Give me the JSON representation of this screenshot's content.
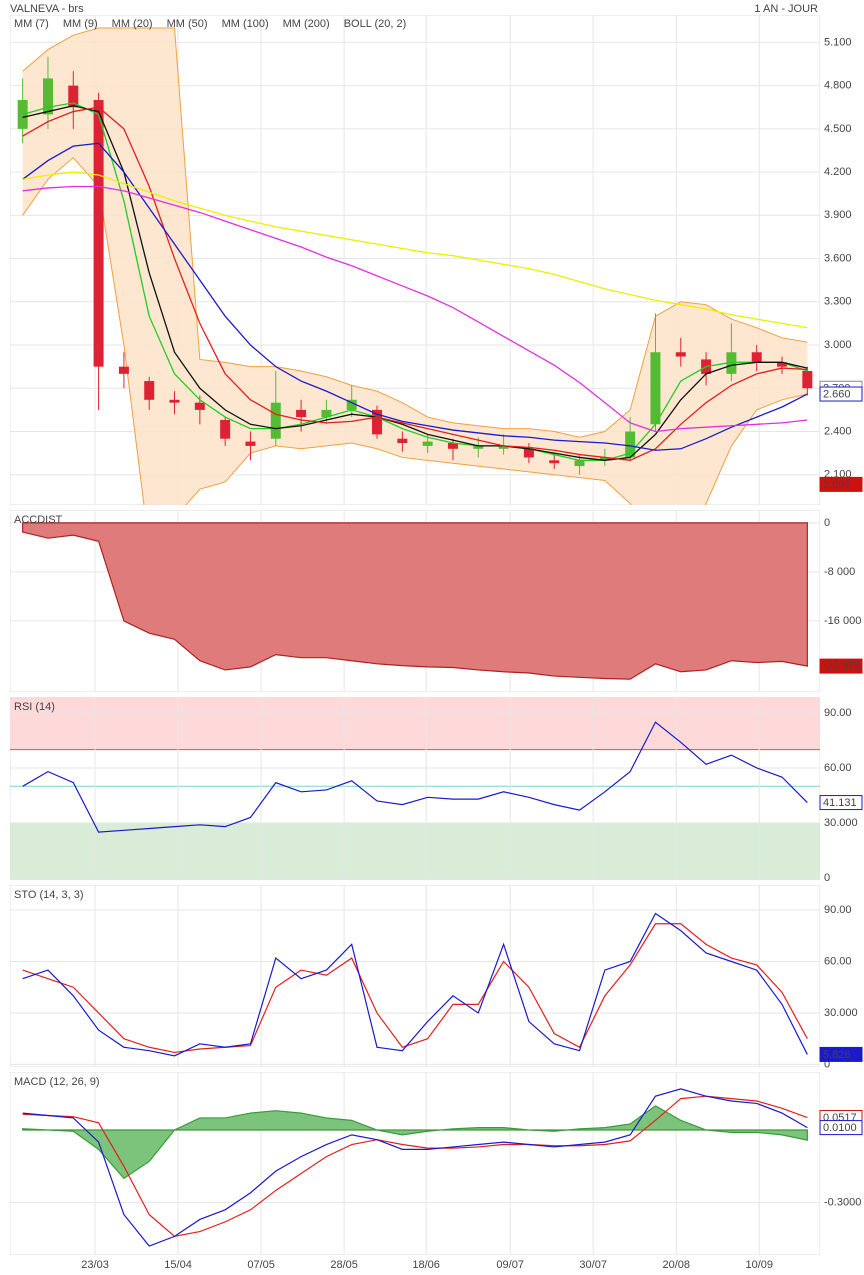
{
  "chart_data": [
    {
      "type": "candlestick",
      "title": "VALNEVA - brs",
      "subtitle": "1 AN - JOUR",
      "x": [
        0,
        1,
        2,
        3,
        4,
        5,
        6,
        7,
        8,
        9,
        10,
        11,
        12,
        13,
        14,
        15,
        16,
        17,
        18,
        19,
        20,
        21,
        22,
        23,
        24,
        25,
        26,
        27,
        28,
        29,
        30,
        31
      ],
      "xlim": [
        -0.5,
        31.5
      ],
      "xticks": [
        {
          "value": 2.86,
          "label": "23/03"
        },
        {
          "value": 6.14,
          "label": "15/04"
        },
        {
          "value": 9.42,
          "label": "07/05"
        },
        {
          "value": 12.7,
          "label": "28/05"
        },
        {
          "value": 15.94,
          "label": "18/06"
        },
        {
          "value": 19.26,
          "label": "09/07"
        },
        {
          "value": 22.54,
          "label": "30/07"
        },
        {
          "value": 25.82,
          "label": "20/08"
        },
        {
          "value": 29.1,
          "label": "10/09"
        }
      ],
      "ylim": [
        1.89,
        5.29
      ],
      "yticks": [
        {
          "value": 2.1,
          "label": "2.100"
        },
        {
          "value": 2.4,
          "label": "2.400"
        },
        {
          "value": 2.7,
          "label": "2.700"
        },
        {
          "value": 3.0,
          "label": "3.000"
        },
        {
          "value": 3.3,
          "label": "3.300"
        },
        {
          "value": 3.6,
          "label": "3.600"
        },
        {
          "value": 3.9,
          "label": "3.900"
        },
        {
          "value": 4.2,
          "label": "4.200"
        },
        {
          "value": 4.5,
          "label": "4.500"
        },
        {
          "value": 4.8,
          "label": "4.800"
        },
        {
          "value": 5.1,
          "label": "5.100"
        }
      ],
      "grid": true,
      "up_color": "#55bb33",
      "down_color": "#dd2233",
      "open": [
        4.5,
        4.6,
        4.8,
        4.7,
        2.85,
        2.75,
        2.62,
        2.6,
        2.48,
        2.33,
        2.35,
        2.55,
        2.5,
        2.55,
        2.55,
        2.35,
        2.3,
        2.32,
        2.28,
        2.28,
        2.28,
        2.2,
        2.16,
        2.2,
        2.22,
        2.45,
        2.95,
        2.9,
        2.8,
        2.95,
        2.88,
        2.82
      ],
      "high": [
        4.85,
        5.0,
        4.9,
        4.75,
        2.95,
        2.78,
        2.68,
        2.65,
        2.5,
        2.4,
        2.82,
        2.62,
        2.62,
        2.72,
        2.58,
        2.4,
        2.38,
        2.35,
        2.36,
        2.38,
        2.32,
        2.25,
        2.24,
        2.28,
        2.5,
        3.22,
        3.05,
        2.95,
        3.15,
        3.0,
        2.92,
        2.85
      ],
      "low": [
        4.4,
        4.5,
        4.5,
        2.55,
        2.7,
        2.55,
        2.52,
        2.45,
        2.3,
        2.2,
        2.3,
        2.4,
        2.45,
        2.5,
        2.35,
        2.26,
        2.25,
        2.2,
        2.22,
        2.24,
        2.18,
        2.14,
        2.1,
        2.16,
        2.2,
        2.4,
        2.85,
        2.72,
        2.75,
        2.82,
        2.8,
        2.65
      ],
      "close": [
        4.7,
        4.85,
        4.65,
        2.85,
        2.8,
        2.62,
        2.6,
        2.55,
        2.35,
        2.3,
        2.6,
        2.5,
        2.55,
        2.62,
        2.38,
        2.32,
        2.33,
        2.28,
        2.3,
        2.3,
        2.22,
        2.18,
        2.2,
        2.22,
        2.4,
        2.95,
        2.92,
        2.8,
        2.95,
        2.88,
        2.85,
        2.7
      ],
      "series": [
        {
          "name": "MM (7)",
          "color": "#22cc22",
          "values": [
            4.6,
            4.65,
            4.68,
            4.6,
            4.0,
            3.2,
            2.8,
            2.62,
            2.5,
            2.42,
            2.42,
            2.45,
            2.5,
            2.55,
            2.5,
            2.42,
            2.36,
            2.32,
            2.3,
            2.3,
            2.28,
            2.24,
            2.2,
            2.2,
            2.25,
            2.45,
            2.75,
            2.85,
            2.88,
            2.88,
            2.88,
            2.82
          ]
        },
        {
          "name": "MM (9)",
          "color": "#111111",
          "values": [
            4.58,
            4.62,
            4.66,
            4.62,
            4.2,
            3.5,
            2.95,
            2.7,
            2.55,
            2.45,
            2.42,
            2.44,
            2.48,
            2.52,
            2.5,
            2.45,
            2.38,
            2.34,
            2.3,
            2.3,
            2.28,
            2.25,
            2.22,
            2.2,
            2.22,
            2.38,
            2.62,
            2.8,
            2.86,
            2.88,
            2.88,
            2.84
          ]
        },
        {
          "name": "MM (20)",
          "color": "#e02020",
          "values": [
            4.45,
            4.55,
            4.62,
            4.65,
            4.5,
            4.1,
            3.6,
            3.15,
            2.8,
            2.62,
            2.52,
            2.48,
            2.46,
            2.47,
            2.5,
            2.46,
            2.42,
            2.38,
            2.34,
            2.3,
            2.29,
            2.27,
            2.24,
            2.22,
            2.2,
            2.28,
            2.45,
            2.6,
            2.72,
            2.8,
            2.84,
            2.83
          ]
        },
        {
          "name": "MM (50)",
          "color": "#1a1acc",
          "values": [
            4.15,
            4.28,
            4.38,
            4.4,
            4.2,
            3.95,
            3.7,
            3.45,
            3.2,
            3.0,
            2.85,
            2.75,
            2.68,
            2.6,
            2.52,
            2.47,
            2.44,
            2.41,
            2.39,
            2.37,
            2.36,
            2.34,
            2.33,
            2.32,
            2.3,
            2.27,
            2.28,
            2.35,
            2.43,
            2.5,
            2.57,
            2.66
          ]
        },
        {
          "name": "MM (100)",
          "color": "#e030e0",
          "values": [
            4.07,
            4.09,
            4.1,
            4.1,
            4.07,
            4.02,
            3.97,
            3.92,
            3.86,
            3.8,
            3.74,
            3.68,
            3.61,
            3.55,
            3.48,
            3.41,
            3.34,
            3.26,
            3.16,
            3.06,
            2.96,
            2.86,
            2.74,
            2.6,
            2.46,
            2.4,
            2.42,
            2.43,
            2.44,
            2.45,
            2.46,
            2.48
          ]
        },
        {
          "name": "MM (200)",
          "color": "#eeee00",
          "values": [
            4.15,
            4.18,
            4.2,
            4.18,
            4.12,
            4.06,
            4.0,
            3.95,
            3.9,
            3.86,
            3.82,
            3.79,
            3.76,
            3.73,
            3.7,
            3.67,
            3.64,
            3.62,
            3.59,
            3.56,
            3.53,
            3.49,
            3.44,
            3.39,
            3.35,
            3.31,
            3.28,
            3.25,
            3.21,
            3.18,
            3.15,
            3.12
          ]
        }
      ],
      "band": {
        "name": "BOLL (20, 2)",
        "color": "#f0a040",
        "fill": "#fde3c8",
        "upper": [
          4.9,
          5.05,
          5.15,
          5.2,
          5.2,
          5.2,
          5.2,
          2.9,
          2.88,
          2.85,
          2.85,
          2.82,
          2.78,
          2.72,
          2.68,
          2.6,
          2.5,
          2.46,
          2.44,
          2.42,
          2.42,
          2.4,
          2.36,
          2.4,
          2.55,
          3.2,
          3.3,
          3.28,
          3.18,
          3.12,
          3.05,
          3.02
        ],
        "lower": [
          3.9,
          4.15,
          4.3,
          4.1,
          3.0,
          1.6,
          1.8,
          2.0,
          2.05,
          2.25,
          2.3,
          2.28,
          2.3,
          2.32,
          2.28,
          2.22,
          2.2,
          2.18,
          2.16,
          2.14,
          2.12,
          2.1,
          2.08,
          2.06,
          1.9,
          1.6,
          1.5,
          1.9,
          2.3,
          2.55,
          2.62,
          2.66
        ]
      },
      "value_boxes": [
        {
          "value": 2.7,
          "label": "2.700",
          "color": "#888888",
          "filled": false
        },
        {
          "value": 2.66,
          "label": "2.660",
          "color": "#1a1acc",
          "filled": false
        },
        {
          "value": 2.033,
          "label": "2.033",
          "color": "#cc1111",
          "filled": true
        }
      ]
    },
    {
      "type": "area",
      "title": "ACCDIST",
      "title_color": "#b22222",
      "ylim": [
        -27600,
        2100
      ],
      "yticks": [
        0,
        {
          "value": -8000,
          "label": "-8 000"
        },
        {
          "value": -16000,
          "label": "-16 000"
        }
      ],
      "grid": true,
      "series": [
        {
          "color": "#e07b7b",
          "line_color": "#b02020",
          "values": [
            -1500,
            -2500,
            -2000,
            -3000,
            -16000,
            -18000,
            -19000,
            -22500,
            -24000,
            -23500,
            -21500,
            -22000,
            -22000,
            -22500,
            -23000,
            -23300,
            -23500,
            -23600,
            -24000,
            -24300,
            -24500,
            -25000,
            -25200,
            -25400,
            -25500,
            -23000,
            -24300,
            -24000,
            -22500,
            -22800,
            -22600,
            -23375
          ]
        }
      ],
      "value_boxes": [
        {
          "value": -23375,
          "label": "-23 375",
          "color": "#cc1111",
          "filled": true
        }
      ]
    },
    {
      "type": "line",
      "title": "RSI (14)",
      "title_color": "#1a1acc",
      "ylim": [
        -1.1,
        98.7
      ],
      "yticks": [
        0,
        {
          "value": 30,
          "label": "30.000"
        },
        {
          "value": 60,
          "label": "60.00"
        },
        {
          "value": 90,
          "label": "90.00"
        }
      ],
      "grid": true,
      "zones": {
        "upper": 70,
        "lower": 30,
        "mid": 50,
        "upper_color": "#fdd9d9",
        "lower_color": "#d8ecd8",
        "upper_line": "#e05050",
        "lower_line": "#2e8b2e",
        "mid_line": "#80d0d0"
      },
      "series": [
        {
          "color": "#1a1acc",
          "values": [
            50,
            58,
            52,
            25,
            26,
            27,
            28,
            29,
            28,
            33,
            52,
            47,
            48,
            53,
            42,
            40,
            44,
            43,
            43,
            47,
            44,
            40,
            37,
            47,
            58,
            85,
            74,
            62,
            67,
            60,
            55,
            41.131
          ]
        }
      ],
      "value_boxes": [
        {
          "value": 41.131,
          "label": "41.131",
          "color": "#1a1acc",
          "filled": false
        }
      ]
    },
    {
      "type": "line",
      "title": "STO (14, 3, 3)",
      "title_color": "#1a1acc",
      "ylim": [
        -1.5,
        104.6
      ],
      "yticks": [
        0,
        {
          "value": 30,
          "label": "30.000"
        },
        {
          "value": 60,
          "label": "60.00"
        },
        {
          "value": 90,
          "label": "90.00"
        }
      ],
      "grid": true,
      "series": [
        {
          "color": "#e02020",
          "values": [
            55,
            50,
            45,
            30,
            15,
            10,
            7,
            9,
            10,
            11,
            45,
            55,
            52,
            62,
            30,
            10,
            15,
            35,
            35,
            60,
            45,
            18,
            10,
            40,
            58,
            82,
            82,
            70,
            62,
            58,
            42,
            15
          ]
        },
        {
          "color": "#1a1acc",
          "values": [
            50,
            55,
            40,
            20,
            10,
            8,
            5,
            12,
            10,
            12,
            62,
            50,
            55,
            70,
            10,
            8,
            25,
            40,
            30,
            70,
            25,
            12,
            8,
            55,
            60,
            88,
            78,
            65,
            60,
            55,
            35,
            5.826
          ]
        }
      ],
      "value_boxes": [
        {
          "value": 5.826,
          "label": "5.826",
          "color": "#1a1acc",
          "filled": true
        }
      ]
    },
    {
      "type": "line",
      "title": "MACD (12, 26, 9)",
      "title_color": "#1a1acc",
      "ylim": [
        -0.517,
        0.24
      ],
      "yticks": [
        {
          "value": -0.3,
          "label": "-0.3000"
        }
      ],
      "grid": true,
      "series": [
        {
          "style": "area",
          "color": "#7cc47c",
          "line_color": "#3a9a3a",
          "values": [
            0.005,
            0,
            -0.005,
            -0.08,
            -0.2,
            -0.13,
            0,
            0.05,
            0.05,
            0.07,
            0.08,
            0.07,
            0.05,
            0.04,
            0,
            -0.02,
            -0.005,
            0.005,
            0.01,
            0.01,
            0,
            -0.005,
            0.005,
            0.01,
            0.025,
            0.1,
            0.04,
            0,
            -0.01,
            -0.01,
            -0.02,
            -0.0417
          ]
        },
        {
          "color": "#e02020",
          "values": [
            0.065,
            0.06,
            0.055,
            0.03,
            -0.15,
            -0.35,
            -0.44,
            -0.42,
            -0.38,
            -0.33,
            -0.25,
            -0.18,
            -0.11,
            -0.06,
            -0.04,
            -0.06,
            -0.075,
            -0.075,
            -0.07,
            -0.06,
            -0.06,
            -0.065,
            -0.065,
            -0.06,
            -0.045,
            0.04,
            0.13,
            0.14,
            0.13,
            0.12,
            0.09,
            0.0517
          ]
        },
        {
          "color": "#1a1acc",
          "values": [
            0.07,
            0.06,
            0.05,
            -0.05,
            -0.35,
            -0.48,
            -0.44,
            -0.37,
            -0.33,
            -0.26,
            -0.17,
            -0.11,
            -0.06,
            -0.02,
            -0.04,
            -0.08,
            -0.08,
            -0.07,
            -0.06,
            -0.05,
            -0.06,
            -0.07,
            -0.06,
            -0.05,
            -0.02,
            0.14,
            0.17,
            0.14,
            0.12,
            0.11,
            0.07,
            0.01
          ]
        }
      ],
      "value_boxes": [
        {
          "value": 0.0517,
          "label": "0.0517",
          "color": "#cc1111",
          "filled": false
        },
        {
          "value": 0.01,
          "label": "0.0100",
          "color": "#1a1acc",
          "filled": false
        }
      ]
    }
  ]
}
